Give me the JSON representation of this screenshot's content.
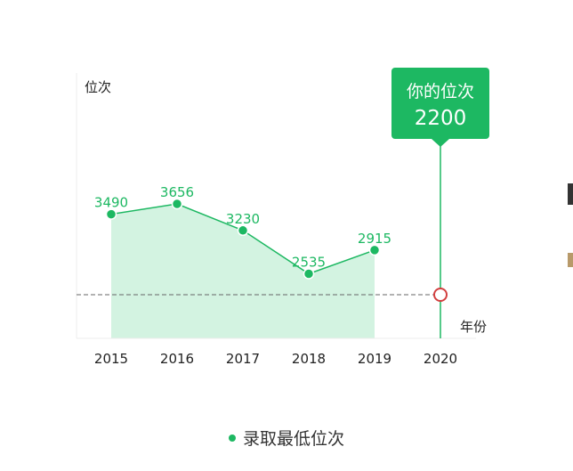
{
  "chart_data": {
    "type": "area",
    "ylabel": "位次",
    "xlabel": "年份",
    "categories": [
      "2015",
      "2016",
      "2017",
      "2018",
      "2019",
      "2020"
    ],
    "series": [
      {
        "name": "录取最低位次",
        "x": [
          "2015",
          "2016",
          "2017",
          "2018",
          "2019"
        ],
        "values": [
          3490,
          3656,
          3230,
          2535,
          2915
        ],
        "labels": [
          "3490",
          "3656",
          "3230",
          "2535",
          "2915"
        ]
      }
    ],
    "callout": {
      "x": "2020",
      "title": "你的位次",
      "value": "2200",
      "numeric": 2200
    },
    "colors": {
      "line": "#1db862",
      "area": "#d3f3e1",
      "callout": "#1db862",
      "marker": "#d23f3f",
      "reference": "#666666"
    },
    "legend": {
      "position": "bottom",
      "label": "录取最低位次"
    },
    "grid": false
  }
}
